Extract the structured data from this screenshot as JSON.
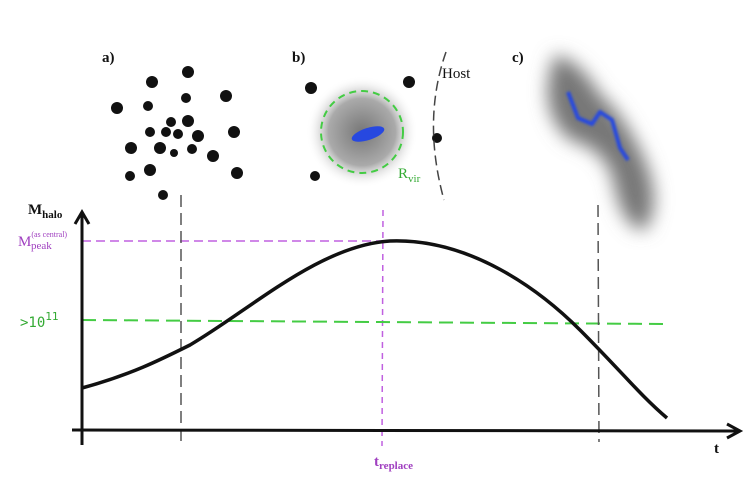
{
  "panels": [
    {
      "label": "a)"
    },
    {
      "label": "b)",
      "annotation": "Host",
      "radius": {
        "symbol": "R",
        "subscript": "vir"
      }
    },
    {
      "label": "c)"
    }
  ],
  "axes": {
    "y_label": {
      "symbol": "M",
      "subscript": "halo"
    },
    "x_label": "t"
  },
  "levels": [
    {
      "symbol": "M",
      "subscript": "peak",
      "superscript": "(as central)"
    },
    {
      "base": ">10",
      "exponent": "11"
    }
  ],
  "time_marker": {
    "symbol": "t",
    "subscript": "replace"
  }
}
